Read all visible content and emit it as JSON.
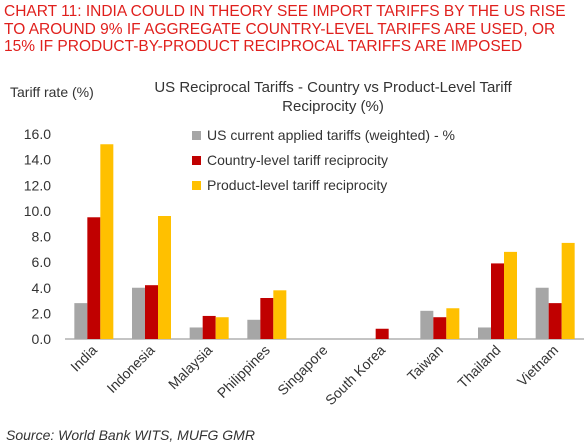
{
  "headline": [
    "CHART 11: INDIA COULD IN THEORY SEE IMPORT TARIFFS BY THE US RISE",
    "TO AROUND 9% IF AGGREGATE COUNTRY-LEVEL TARIFFS ARE USED, OR",
    "15% IF PRODUCT-BY-PRODUCT RECIPROCAL TARIFFS ARE IMPOSED"
  ],
  "source": "Source: World Bank WITS, MUFG GMR",
  "chart_data": {
    "type": "bar",
    "title_lines": [
      "US Reciprocal Tariffs - Country vs Product-Level Tariff",
      "Reciprocity (%)"
    ],
    "ylabel": "Tariff rate (%)",
    "xlabel": "",
    "ylim": [
      0,
      16
    ],
    "yticks": [
      "0.0",
      "2.0",
      "4.0",
      "6.0",
      "8.0",
      "10.0",
      "12.0",
      "14.0",
      "16.0"
    ],
    "grid": false,
    "legend_position": "top-right",
    "categories": [
      "India",
      "Indonesia",
      "Malaysia",
      "Philippines",
      "Singapore",
      "South Korea",
      "Taiwan",
      "Thailand",
      "Vietnam"
    ],
    "series": [
      {
        "name": "US current applied tariffs (weighted) - %",
        "color": "#a6a6a6",
        "values": [
          2.8,
          4.0,
          0.9,
          1.5,
          0,
          0,
          2.2,
          0.9,
          4.0
        ]
      },
      {
        "name": "Country-level tariff reciprocity",
        "color": "#c00000",
        "values": [
          9.5,
          4.2,
          1.8,
          3.2,
          0,
          0.8,
          1.7,
          5.9,
          2.8
        ]
      },
      {
        "name": "Product-level tariff reciprocity",
        "color": "#ffc000",
        "values": [
          15.2,
          9.6,
          1.7,
          3.8,
          0,
          0,
          2.4,
          6.8,
          7.5
        ]
      }
    ]
  }
}
